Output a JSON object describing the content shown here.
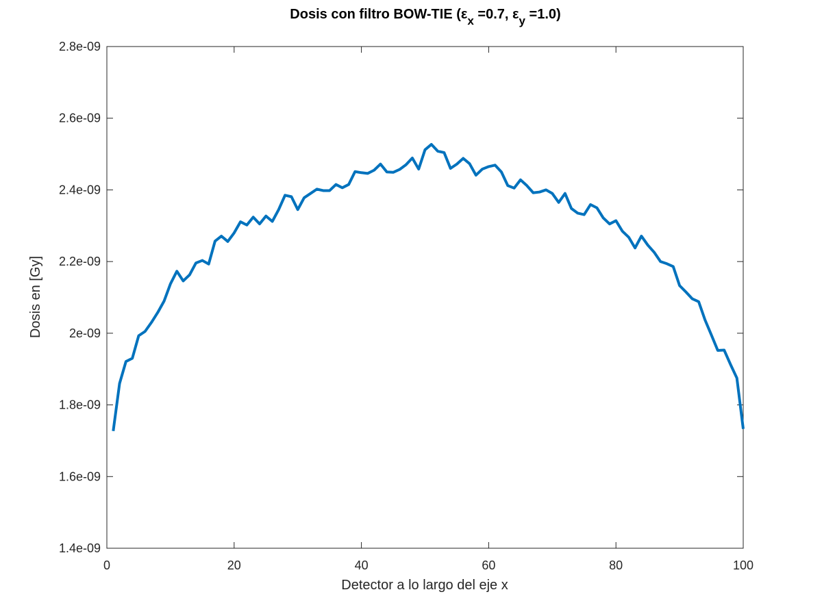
{
  "chart_data": {
    "type": "line",
    "title": {
      "prefix": "Dosis con filtro BOW-TIE (",
      "eps1": "ε",
      "sub1": "x",
      "mid": " =0.7, ",
      "eps2": "ε",
      "sub2": "y",
      "suffix": " =1.0)"
    },
    "xlabel": "Detector a lo largo del eje x",
    "ylabel": "Dosis en [Gy]",
    "xlim": [
      0,
      100
    ],
    "ylim": [
      1.4e-09,
      2.8e-09
    ],
    "xticks": [
      0,
      20,
      40,
      60,
      80,
      100
    ],
    "xtick_labels": [
      "0",
      "20",
      "40",
      "60",
      "80",
      "100"
    ],
    "yticks": [
      1.4e-09,
      1.6e-09,
      1.8e-09,
      2e-09,
      2.2e-09,
      2.4e-09,
      2.6e-09,
      2.8e-09
    ],
    "ytick_labels": [
      "1.4e-09",
      "1.6e-09",
      "1.8e-09",
      "2e-09",
      "2.2e-09",
      "2.4e-09",
      "2.6e-09",
      "2.8e-09"
    ],
    "grid": false,
    "line_color": "#0072BD",
    "series": [
      {
        "x": [
          1,
          2,
          3,
          4,
          5,
          6,
          7,
          8,
          9,
          10,
          11,
          12,
          13,
          14,
          15,
          16,
          17,
          18,
          19,
          20,
          21,
          22,
          23,
          24,
          25,
          26,
          27,
          28,
          29,
          30,
          31,
          32,
          33,
          34,
          35,
          36,
          37,
          38,
          39,
          40,
          41,
          42,
          43,
          44,
          45,
          46,
          47,
          48,
          49,
          50,
          51,
          52,
          53,
          54,
          55,
          56,
          57,
          58,
          59,
          60,
          61,
          62,
          63,
          64,
          65,
          66,
          67,
          68,
          69,
          70,
          71,
          72,
          73,
          74,
          75,
          76,
          77,
          78,
          79,
          80,
          81,
          82,
          83,
          84,
          85,
          86,
          87,
          88,
          89,
          90,
          91,
          92,
          93,
          94,
          95,
          96,
          97,
          98,
          99,
          100
        ],
        "y": [
          1.727e-09,
          1.86e-09,
          1.921e-09,
          1.93e-09,
          1.993e-09,
          2.005e-09,
          2.03e-09,
          2.058e-09,
          2.09e-09,
          2.138e-09,
          2.173e-09,
          2.146e-09,
          2.163e-09,
          2.196e-09,
          2.203e-09,
          2.193e-09,
          2.257e-09,
          2.271e-09,
          2.256e-09,
          2.28e-09,
          2.311e-09,
          2.302e-09,
          2.324e-09,
          2.305e-09,
          2.327e-09,
          2.312e-09,
          2.345e-09,
          2.385e-09,
          2.381e-09,
          2.345e-09,
          2.378e-09,
          2.39e-09,
          2.402e-09,
          2.398e-09,
          2.398e-09,
          2.415e-09,
          2.406e-09,
          2.415e-09,
          2.451e-09,
          2.448e-09,
          2.446e-09,
          2.455e-09,
          2.472e-09,
          2.45e-09,
          2.449e-09,
          2.457e-09,
          2.47e-09,
          2.489e-09,
          2.458e-09,
          2.512e-09,
          2.527e-09,
          2.508e-09,
          2.504e-09,
          2.46e-09,
          2.472e-09,
          2.488e-09,
          2.473e-09,
          2.441e-09,
          2.458e-09,
          2.465e-09,
          2.469e-09,
          2.45e-09,
          2.412e-09,
          2.405e-09,
          2.428e-09,
          2.412e-09,
          2.392e-09,
          2.394e-09,
          2.4e-09,
          2.39e-09,
          2.365e-09,
          2.39e-09,
          2.348e-09,
          2.335e-09,
          2.331e-09,
          2.359e-09,
          2.35e-09,
          2.322e-09,
          2.305e-09,
          2.314e-09,
          2.285e-09,
          2.268e-09,
          2.238e-09,
          2.271e-09,
          2.246e-09,
          2.226e-09,
          2.2e-09,
          2.194e-09,
          2.186e-09,
          2.133e-09,
          2.115e-09,
          2.096e-09,
          2.088e-09,
          2.037e-09,
          1.995e-09,
          1.952e-09,
          1.953e-09,
          1.913e-09,
          1.875e-09,
          1.733e-09
        ]
      }
    ]
  }
}
